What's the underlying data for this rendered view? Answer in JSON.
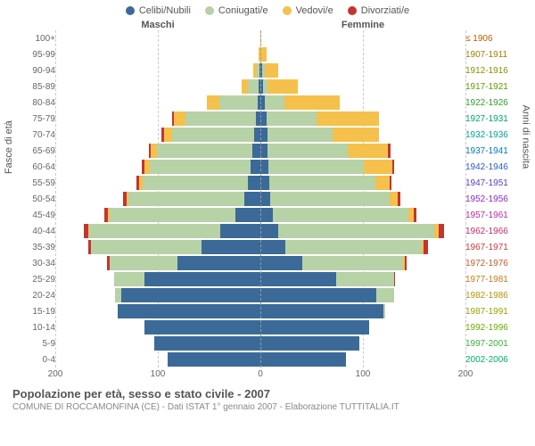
{
  "legend": [
    {
      "label": "Celibi/Nubili",
      "color": "#3b6a98"
    },
    {
      "label": "Coniugati/e",
      "color": "#b7d2a6"
    },
    {
      "label": "Vedovi/e",
      "color": "#f5c04c"
    },
    {
      "label": "Divorziati/e",
      "color": "#c23531"
    }
  ],
  "headers": {
    "male": "Maschi",
    "female": "Femmine",
    "left_axis": "Fasce di età",
    "right_axis": "Anni di nascita"
  },
  "xaxis": {
    "max": 200,
    "ticks": [
      200,
      100,
      0,
      100,
      200
    ]
  },
  "rows": [
    {
      "age": "100+",
      "birth": "≤ 1906",
      "birth_color": "#B85C00",
      "m": {
        "cel": 0,
        "con": 0,
        "ved": 0,
        "div": 0
      },
      "f": {
        "cel": 0,
        "con": 0,
        "ved": 1,
        "div": 0
      }
    },
    {
      "age": "95-99",
      "birth": "1907-1911",
      "birth_color": "#A67C00",
      "m": {
        "cel": 0,
        "con": 0,
        "ved": 2,
        "div": 0
      },
      "f": {
        "cel": 0,
        "con": 0,
        "ved": 6,
        "div": 0
      }
    },
    {
      "age": "90-94",
      "birth": "1912-1916",
      "birth_color": "#8A8F00",
      "m": {
        "cel": 1,
        "con": 3,
        "ved": 3,
        "div": 0
      },
      "f": {
        "cel": 2,
        "con": 2,
        "ved": 14,
        "div": 0
      }
    },
    {
      "age": "85-89",
      "birth": "1917-1921",
      "birth_color": "#5E9B00",
      "m": {
        "cel": 2,
        "con": 10,
        "ved": 7,
        "div": 0
      },
      "f": {
        "cel": 3,
        "con": 4,
        "ved": 30,
        "div": 0
      }
    },
    {
      "age": "80-84",
      "birth": "1922-1926",
      "birth_color": "#2AA22A",
      "m": {
        "cel": 3,
        "con": 38,
        "ved": 12,
        "div": 0
      },
      "f": {
        "cel": 4,
        "con": 20,
        "ved": 55,
        "div": 0
      }
    },
    {
      "age": "75-79",
      "birth": "1927-1931",
      "birth_color": "#00A673",
      "m": {
        "cel": 4,
        "con": 70,
        "ved": 12,
        "div": 2
      },
      "f": {
        "cel": 6,
        "con": 50,
        "ved": 62,
        "div": 0
      }
    },
    {
      "age": "70-74",
      "birth": "1932-1936",
      "birth_color": "#009E9E",
      "m": {
        "cel": 6,
        "con": 82,
        "ved": 8,
        "div": 2
      },
      "f": {
        "cel": 7,
        "con": 65,
        "ved": 46,
        "div": 0
      }
    },
    {
      "age": "65-69",
      "birth": "1937-1941",
      "birth_color": "#007AB8",
      "m": {
        "cel": 8,
        "con": 95,
        "ved": 6,
        "div": 2
      },
      "f": {
        "cel": 7,
        "con": 80,
        "ved": 40,
        "div": 2
      }
    },
    {
      "age": "60-64",
      "birth": "1942-1946",
      "birth_color": "#2B5CC4",
      "m": {
        "cel": 10,
        "con": 100,
        "ved": 5,
        "div": 3
      },
      "f": {
        "cel": 8,
        "con": 95,
        "ved": 28,
        "div": 2
      }
    },
    {
      "age": "55-59",
      "birth": "1947-1951",
      "birth_color": "#5A3CC4",
      "m": {
        "cel": 12,
        "con": 105,
        "ved": 3,
        "div": 3
      },
      "f": {
        "cel": 9,
        "con": 105,
        "ved": 14,
        "div": 2
      }
    },
    {
      "age": "50-54",
      "birth": "1952-1956",
      "birth_color": "#8A2BC4",
      "m": {
        "cel": 16,
        "con": 115,
        "ved": 2,
        "div": 3
      },
      "f": {
        "cel": 10,
        "con": 118,
        "ved": 8,
        "div": 3
      }
    },
    {
      "age": "45-49",
      "birth": "1957-1961",
      "birth_color": "#B82AA6",
      "m": {
        "cel": 25,
        "con": 125,
        "ved": 1,
        "div": 4
      },
      "f": {
        "cel": 12,
        "con": 135,
        "ved": 5,
        "div": 3
      }
    },
    {
      "age": "40-44",
      "birth": "1962-1966",
      "birth_color": "#C92A6E",
      "m": {
        "cel": 40,
        "con": 130,
        "ved": 1,
        "div": 4
      },
      "f": {
        "cel": 18,
        "con": 155,
        "ved": 4,
        "div": 5
      }
    },
    {
      "age": "35-39",
      "birth": "1967-1971",
      "birth_color": "#C93A3A",
      "m": {
        "cel": 58,
        "con": 110,
        "ved": 0,
        "div": 3
      },
      "f": {
        "cel": 25,
        "con": 135,
        "ved": 2,
        "div": 4
      }
    },
    {
      "age": "30-34",
      "birth": "1972-1976",
      "birth_color": "#C95A2A",
      "m": {
        "cel": 82,
        "con": 68,
        "ved": 0,
        "div": 2
      },
      "f": {
        "cel": 42,
        "con": 100,
        "ved": 1,
        "div": 2
      }
    },
    {
      "age": "25-29",
      "birth": "1977-1981",
      "birth_color": "#C97A1A",
      "m": {
        "cel": 115,
        "con": 30,
        "ved": 0,
        "div": 0
      },
      "f": {
        "cel": 75,
        "con": 58,
        "ved": 0,
        "div": 1
      }
    },
    {
      "age": "20-24",
      "birth": "1982-1986",
      "birth_color": "#B8920A",
      "m": {
        "cel": 138,
        "con": 6,
        "ved": 0,
        "div": 0
      },
      "f": {
        "cel": 115,
        "con": 18,
        "ved": 0,
        "div": 0
      }
    },
    {
      "age": "15-19",
      "birth": "1987-1991",
      "birth_color": "#96A400",
      "m": {
        "cel": 142,
        "con": 0,
        "ved": 0,
        "div": 0
      },
      "f": {
        "cel": 122,
        "con": 2,
        "ved": 0,
        "div": 0
      }
    },
    {
      "age": "10-14",
      "birth": "1992-1996",
      "birth_color": "#6AAE00",
      "m": {
        "cel": 115,
        "con": 0,
        "ved": 0,
        "div": 0
      },
      "f": {
        "cel": 108,
        "con": 0,
        "ved": 0,
        "div": 0
      }
    },
    {
      "age": "5-9",
      "birth": "1997-2001",
      "birth_color": "#38B23A",
      "m": {
        "cel": 105,
        "con": 0,
        "ved": 0,
        "div": 0
      },
      "f": {
        "cel": 98,
        "con": 0,
        "ved": 0,
        "div": 0
      }
    },
    {
      "age": "0-4",
      "birth": "2002-2006",
      "birth_color": "#00B070",
      "m": {
        "cel": 92,
        "con": 0,
        "ved": 0,
        "div": 0
      },
      "f": {
        "cel": 85,
        "con": 0,
        "ved": 0,
        "div": 0
      }
    }
  ],
  "colors": {
    "cel": "#3b6a98",
    "con": "#b7d2a6",
    "ved": "#f5c04c",
    "div": "#c23531"
  },
  "footer": {
    "title": "Popolazione per età, sesso e stato civile - 2007",
    "subtitle": "COMUNE DI ROCCAMONFINA (CE) - Dati ISTAT 1° gennaio 2007 - Elaborazione TUTTITALIA.IT"
  }
}
